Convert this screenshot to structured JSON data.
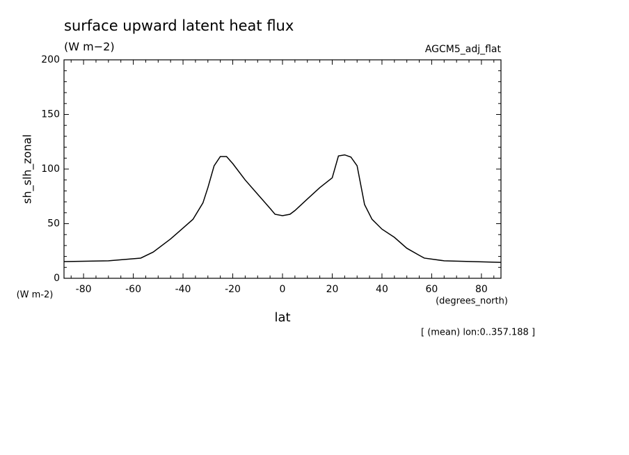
{
  "chart_data": {
    "type": "line",
    "title": "surface upward latent heat flux",
    "subtitle": "(W m−2)",
    "annotation": "AGCM5_adj_flat",
    "ylabel": "sh_slh_zonal",
    "yunits": "(W m-2)",
    "xunits": "(degrees_north)",
    "xlabel": "lat",
    "note": "[ (mean) lon:0..357.188 ]",
    "x": [
      -87.86,
      -70,
      -57,
      -52,
      -45,
      -40,
      -36,
      -32,
      -30,
      -27.5,
      -25,
      -22.5,
      -20,
      -15,
      -10,
      -5,
      -3,
      0,
      3,
      5,
      10,
      15,
      20,
      22.5,
      25,
      27.5,
      30,
      33,
      36,
      40,
      45,
      50,
      55,
      57,
      65,
      87.86
    ],
    "series": [
      {
        "color": "#000000",
        "values": [
          15.3,
          16,
          18.5,
          24,
          36,
          46,
          54,
          69,
          83,
          103,
          111.5,
          111.5,
          105,
          90,
          77,
          64,
          58.6,
          57.3,
          58.6,
          62,
          72.6,
          83,
          92,
          112,
          113,
          111,
          103,
          67.5,
          54,
          45,
          37.5,
          27.5,
          21,
          18.5,
          16,
          14.6
        ]
      }
    ],
    "xlim": [
      -87.86,
      87.86
    ],
    "ylim": [
      0,
      200
    ],
    "xticks": [
      -80,
      -60,
      -40,
      -20,
      0,
      20,
      40,
      60,
      80
    ],
    "yticks": [
      0,
      50,
      100,
      150,
      200
    ],
    "xminorticks": [
      -85,
      -75,
      -70,
      -65,
      -55,
      -50,
      -45,
      -35,
      -30,
      -25,
      -15,
      -10,
      -5,
      5,
      10,
      15,
      25,
      30,
      35,
      45,
      50,
      55,
      65,
      70,
      75,
      85
    ],
    "yminorticks": [
      10,
      20,
      30,
      40,
      60,
      70,
      80,
      90,
      110,
      120,
      130,
      140,
      160,
      170,
      180,
      190
    ]
  }
}
